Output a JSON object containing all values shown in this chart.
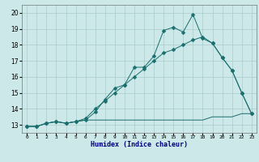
{
  "title": "",
  "xlabel": "Humidex (Indice chaleur)",
  "bg_color": "#cce8e8",
  "grid_color": "#aacccc",
  "line_color": "#1a6e6e",
  "xlim": [
    -0.5,
    23.5
  ],
  "ylim": [
    12.5,
    20.5
  ],
  "xticks": [
    0,
    1,
    2,
    3,
    4,
    5,
    6,
    7,
    8,
    9,
    10,
    11,
    12,
    13,
    14,
    15,
    16,
    17,
    18,
    19,
    20,
    21,
    22,
    23
  ],
  "yticks": [
    13,
    14,
    15,
    16,
    17,
    18,
    19,
    20
  ],
  "series": [
    {
      "x": [
        0,
        1,
        2,
        3,
        4,
        5,
        6,
        7,
        8,
        9,
        10,
        11,
        12,
        13,
        14,
        15,
        16,
        17,
        18,
        19,
        20,
        21,
        22,
        23
      ],
      "y": [
        12.9,
        12.9,
        13.1,
        13.2,
        13.1,
        13.2,
        13.3,
        13.8,
        14.6,
        15.3,
        15.5,
        16.6,
        16.6,
        17.3,
        18.9,
        19.1,
        18.8,
        19.9,
        18.4,
        18.1,
        17.2,
        16.4,
        15.0,
        13.7
      ]
    },
    {
      "x": [
        0,
        1,
        2,
        3,
        4,
        5,
        6,
        7,
        8,
        9,
        10,
        11,
        12,
        13,
        14,
        15,
        16,
        17,
        18,
        19,
        20,
        21,
        22,
        23
      ],
      "y": [
        12.9,
        12.9,
        13.1,
        13.2,
        13.1,
        13.2,
        13.4,
        14.0,
        14.5,
        15.0,
        15.5,
        16.0,
        16.5,
        17.0,
        17.5,
        17.7,
        18.0,
        18.3,
        18.5,
        18.1,
        17.2,
        16.4,
        15.0,
        13.7
      ]
    },
    {
      "x": [
        0,
        1,
        2,
        3,
        4,
        5,
        6,
        7,
        8,
        9,
        10,
        11,
        12,
        13,
        14,
        15,
        16,
        17,
        18,
        19,
        20,
        21,
        22,
        23
      ],
      "y": [
        12.9,
        12.9,
        13.1,
        13.2,
        13.1,
        13.2,
        13.3,
        13.3,
        13.3,
        13.3,
        13.3,
        13.3,
        13.3,
        13.3,
        13.3,
        13.3,
        13.3,
        13.3,
        13.3,
        13.5,
        13.5,
        13.5,
        13.7,
        13.7
      ]
    }
  ]
}
